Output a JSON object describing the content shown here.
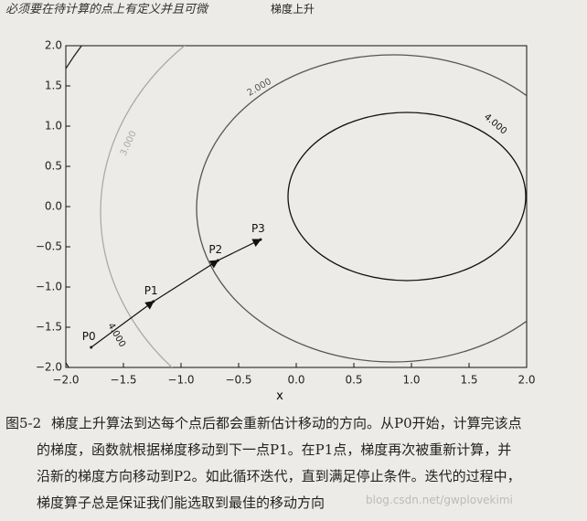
{
  "top_text": "必须要在待计算的点上有定义并且可微",
  "chart_data": {
    "type": "contour",
    "title": "梯度上升",
    "xlabel": "x",
    "xlim": [
      -2,
      2
    ],
    "ylim": [
      -2,
      2
    ],
    "xticks": [
      {
        "value": -2,
        "label": "−2.0"
      },
      {
        "value": -1.5,
        "label": "−1.5"
      },
      {
        "value": -1,
        "label": "−1.0"
      },
      {
        "value": -0.5,
        "label": "−0.5"
      },
      {
        "value": 0,
        "label": "0.0"
      },
      {
        "value": 0.5,
        "label": "0.5"
      },
      {
        "value": 1,
        "label": "1.0"
      },
      {
        "value": 1.5,
        "label": "1.5"
      },
      {
        "value": 2,
        "label": "2.0"
      }
    ],
    "yticks": [
      {
        "value": -2,
        "label": "−2.0"
      },
      {
        "value": -1.5,
        "label": "−1.5"
      },
      {
        "value": -1,
        "label": "−1.0"
      },
      {
        "value": -0.5,
        "label": "−0.5"
      },
      {
        "value": 0,
        "label": "0.0"
      },
      {
        "value": 0.5,
        "label": "0.5"
      },
      {
        "value": 1,
        "label": "1.0"
      },
      {
        "value": 1.5,
        "label": "1.5"
      },
      {
        "value": 2,
        "label": "2.0"
      }
    ],
    "contour_levels": [
      {
        "value": 4,
        "label": "4.000"
      },
      {
        "value": 2,
        "label": "2.000"
      },
      {
        "value": 3,
        "label": "3.000"
      },
      {
        "value": 4,
        "label": "4.000"
      }
    ],
    "points": [
      {
        "label": "P0",
        "x": -1.78,
        "y": -1.75
      },
      {
        "label": "P1",
        "x": -1.24,
        "y": -1.18
      },
      {
        "label": "P2",
        "x": -0.68,
        "y": -0.67
      },
      {
        "label": "P3",
        "x": -0.31,
        "y": -0.41
      }
    ]
  },
  "caption": {
    "figure_label": "图5-2",
    "lines": [
      "梯度上升算法到达每个点后都会重新估计移动的方向。从P0开始，计算完该点",
      "的梯度，函数就根据梯度移动到下一点P1。在P1点，梯度再次被重新计算，并",
      "沿新的梯度方向移动到P2。如此循环迭代，直到满足停止条件。迭代的过程中，",
      "梯度算子总是保证我们能选取到最佳的移动方向"
    ]
  },
  "watermark": "blog.csdn.net/gwplovekimi"
}
